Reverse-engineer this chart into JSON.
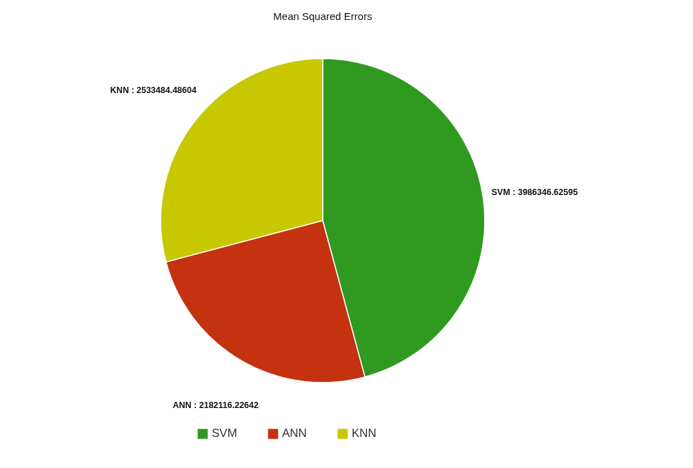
{
  "chart_data": {
    "type": "pie",
    "title": "Mean Squared Errors",
    "categories": [
      "SVM",
      "ANN",
      "KNN"
    ],
    "values": [
      3986346.62595,
      2182116.22642,
      2533484.48604
    ],
    "colors": [
      "#2f9a1f",
      "#c4320f",
      "#c8c800"
    ],
    "value_labels": [
      "SVM : 3986346.62595",
      "ANN : 2182116.22642",
      "KNN : 2533484.48604"
    ],
    "legend": "bottom"
  }
}
